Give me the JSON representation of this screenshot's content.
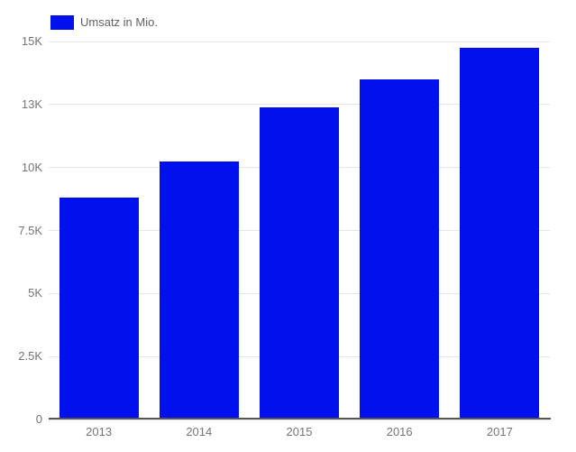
{
  "chart_data": {
    "type": "bar",
    "title": "",
    "categories": [
      "2013",
      "2014",
      "2015",
      "2016",
      "2017"
    ],
    "series": [
      {
        "name": "Umsatz in Mio.",
        "values": [
          8800,
          10250,
          12400,
          13500,
          14750
        ]
      }
    ],
    "xlabel": "",
    "ylabel": "",
    "ylim": [
      0,
      15000
    ],
    "yticks": [
      {
        "value": 0,
        "label": "0"
      },
      {
        "value": 2500,
        "label": "2.5K"
      },
      {
        "value": 5000,
        "label": "5K"
      },
      {
        "value": 7500,
        "label": "7.5K"
      },
      {
        "value": 10000,
        "label": "10K"
      },
      {
        "value": 12500,
        "label": "13K"
      },
      {
        "value": 15000,
        "label": "15K"
      }
    ],
    "grid": true,
    "legend_position": "top-left"
  },
  "legend": {
    "label": "Umsatz in Mio."
  },
  "colors": {
    "bar": "#0011ee",
    "axis_text": "#757575",
    "legend_text": "#616161",
    "gridline": "#e6e6e6",
    "baseline": "#565656",
    "background": "#ffffff"
  }
}
